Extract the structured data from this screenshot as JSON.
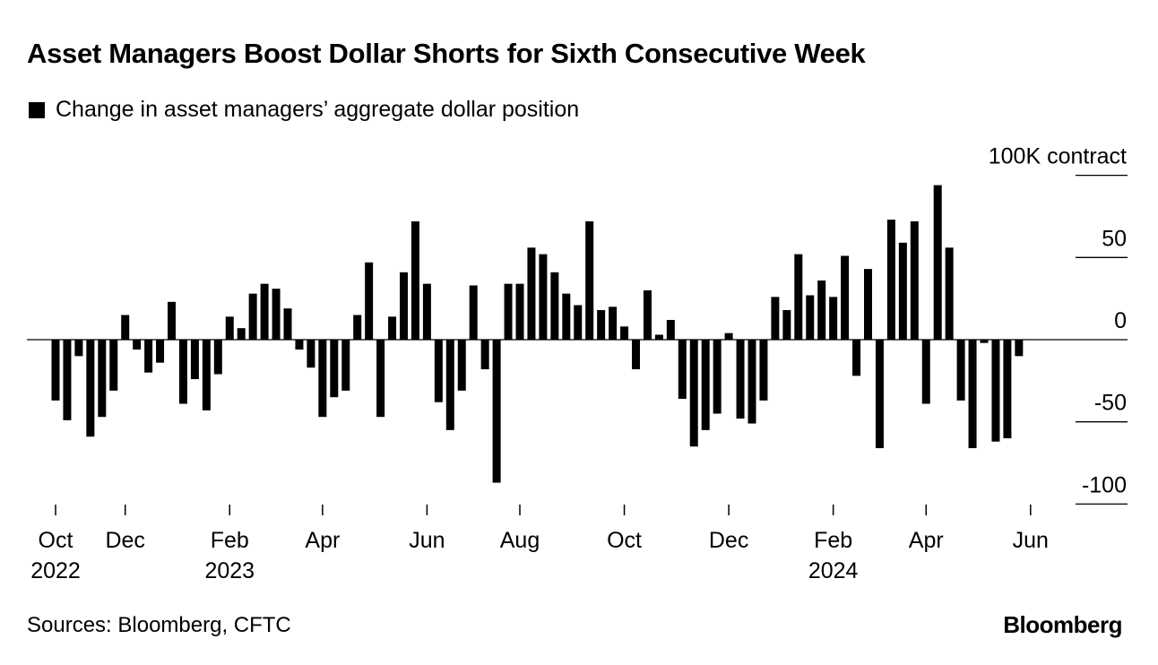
{
  "chart_data": {
    "type": "bar",
    "title": "Asset Managers Boost Dollar Shorts for Sixth Consecutive Week",
    "legend": "Change in asset managers’ aggregate dollar position",
    "unit_label": "100K contract",
    "ylim": [
      -110,
      100
    ],
    "yticks": [
      {
        "v": 100,
        "label": "100K contract"
      },
      {
        "v": 50,
        "label": "50"
      },
      {
        "v": 0,
        "label": "0"
      },
      {
        "v": -50,
        "label": "-50"
      },
      {
        "v": -100,
        "label": "-100"
      }
    ],
    "xticks": [
      {
        "i": 0,
        "label": "Oct",
        "year": "2022"
      },
      {
        "i": 6,
        "label": "Dec",
        "year": ""
      },
      {
        "i": 15,
        "label": "Feb",
        "year": "2023"
      },
      {
        "i": 23,
        "label": "Apr",
        "year": ""
      },
      {
        "i": 32,
        "label": "Jun",
        "year": ""
      },
      {
        "i": 40,
        "label": "Aug",
        "year": ""
      },
      {
        "i": 49,
        "label": "Oct",
        "year": ""
      },
      {
        "i": 58,
        "label": "Dec",
        "year": ""
      },
      {
        "i": 67,
        "label": "Feb",
        "year": "2024"
      },
      {
        "i": 75,
        "label": "Apr",
        "year": ""
      },
      {
        "i": 84,
        "label": "Jun",
        "year": ""
      }
    ],
    "values": [
      -37,
      -49,
      -10,
      -59,
      -47,
      -31,
      15,
      -6,
      -20,
      -14,
      23,
      -39,
      -24,
      -43,
      -21,
      14,
      7,
      28,
      34,
      31,
      19,
      -6,
      -17,
      -47,
      -35,
      -31,
      15,
      47,
      -47,
      14,
      41,
      72,
      34,
      -38,
      -55,
      -31,
      33,
      -18,
      -87,
      34,
      34,
      56,
      52,
      41,
      28,
      21,
      72,
      18,
      20,
      8,
      -18,
      30,
      3,
      12,
      -36,
      -65,
      -55,
      -45,
      4,
      -48,
      -51,
      -37,
      26,
      18,
      52,
      27,
      36,
      26,
      51,
      -22,
      43,
      -66,
      73,
      59,
      72,
      -39,
      94,
      56,
      -37,
      -66,
      -2,
      -62,
      -60,
      -10
    ],
    "grid": false
  },
  "source": "Sources: Bloomberg, CFTC",
  "logo": "Bloomberg"
}
